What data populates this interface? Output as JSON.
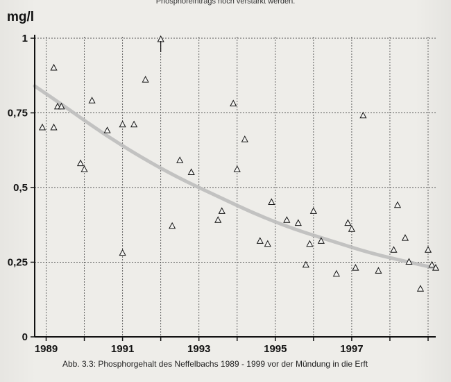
{
  "header_text": "Phosphoreintrags noch verstärkt werden.",
  "caption": "Abb. 3.3: Phosphorgehalt des Neffelbachs 1989 - 1999 vor der Mündung in die Erft",
  "chart_data": {
    "type": "scatter",
    "ylabel": "mg/l",
    "ylim": [
      0,
      1
    ],
    "xlim": [
      1988.7,
      1999.2
    ],
    "yticks": [
      {
        "value": 0,
        "label": "0"
      },
      {
        "value": 0.25,
        "label": "0,25"
      },
      {
        "value": 0.5,
        "label": "0,5"
      },
      {
        "value": 0.75,
        "label": "0,75"
      },
      {
        "value": 1,
        "label": "1"
      }
    ],
    "xtick_labels": [
      {
        "value": 1989,
        "label": "1989"
      },
      {
        "value": 1991,
        "label": "1991"
      },
      {
        "value": 1993,
        "label": "1993"
      },
      {
        "value": 1995,
        "label": "1995"
      },
      {
        "value": 1997,
        "label": "1997"
      }
    ],
    "grid": true,
    "series": [
      {
        "marker": "open-triangle",
        "points": [
          [
            1988.9,
            0.7
          ],
          [
            1989.2,
            0.7
          ],
          [
            1989.2,
            0.9
          ],
          [
            1989.3,
            0.77
          ],
          [
            1989.4,
            0.77
          ],
          [
            1989.9,
            0.58
          ],
          [
            1990.0,
            0.56
          ],
          [
            1990.2,
            0.79
          ],
          [
            1990.6,
            0.69
          ],
          [
            1991.0,
            0.71
          ],
          [
            1991.0,
            0.28
          ],
          [
            1991.3,
            0.71
          ],
          [
            1991.6,
            0.86
          ],
          [
            1992.3,
            0.37
          ],
          [
            1992.5,
            0.59
          ],
          [
            1992.8,
            0.55
          ],
          [
            1993.5,
            0.39
          ],
          [
            1993.6,
            0.42
          ],
          [
            1993.9,
            0.78
          ],
          [
            1994.0,
            0.56
          ],
          [
            1994.2,
            0.66
          ],
          [
            1994.6,
            0.32
          ],
          [
            1994.8,
            0.31
          ],
          [
            1994.9,
            0.45
          ],
          [
            1995.3,
            0.39
          ],
          [
            1995.6,
            0.38
          ],
          [
            1995.8,
            0.24
          ],
          [
            1995.9,
            0.31
          ],
          [
            1996.0,
            0.42
          ],
          [
            1996.2,
            0.32
          ],
          [
            1996.6,
            0.21
          ],
          [
            1996.9,
            0.38
          ],
          [
            1997.0,
            0.36
          ],
          [
            1997.1,
            0.23
          ],
          [
            1997.3,
            0.74
          ],
          [
            1997.7,
            0.22
          ],
          [
            1998.1,
            0.29
          ],
          [
            1998.2,
            0.44
          ],
          [
            1998.4,
            0.33
          ],
          [
            1998.5,
            0.25
          ],
          [
            1998.8,
            0.16
          ],
          [
            1999.0,
            0.29
          ],
          [
            1999.1,
            0.24
          ],
          [
            1999.2,
            0.23
          ]
        ]
      }
    ],
    "offscale_points": [
      {
        "x": 1992.0,
        "y": 1.0,
        "note": "arrow-up"
      }
    ],
    "trend": {
      "type": "exponential-decay",
      "points": [
        [
          1988.7,
          0.84
        ],
        [
          1989.5,
          0.77
        ],
        [
          1990.5,
          0.68
        ],
        [
          1991.5,
          0.6
        ],
        [
          1992.5,
          0.53
        ],
        [
          1993.5,
          0.47
        ],
        [
          1994.5,
          0.41
        ],
        [
          1995.5,
          0.36
        ],
        [
          1996.5,
          0.32
        ],
        [
          1997.5,
          0.28
        ],
        [
          1998.5,
          0.25
        ],
        [
          1999.2,
          0.23
        ]
      ]
    }
  }
}
